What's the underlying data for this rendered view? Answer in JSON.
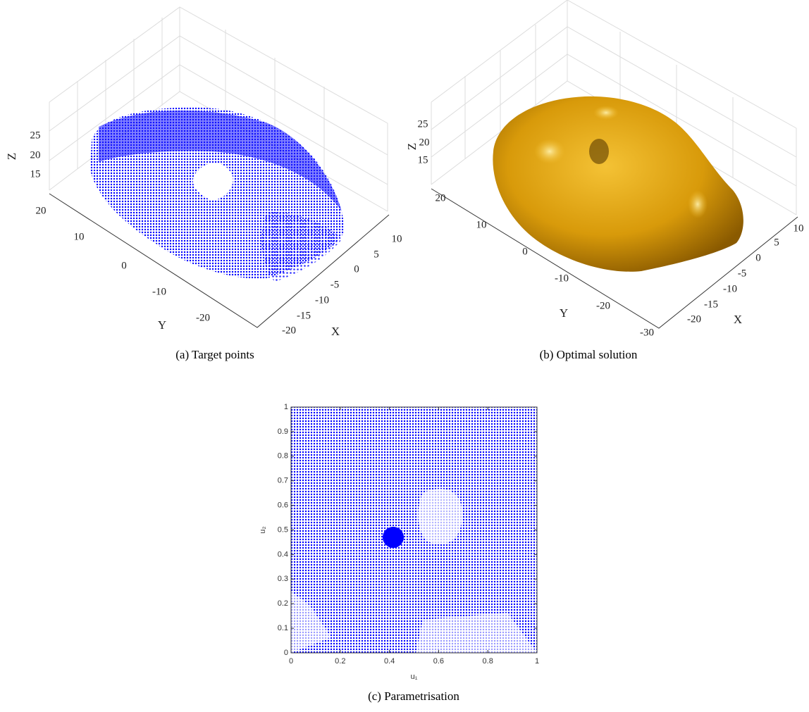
{
  "figure": {
    "panels": [
      {
        "type": "scatter3d",
        "caption": "(a) Target points",
        "xlabel": "X",
        "ylabel": "Y",
        "zlabel": "Z",
        "xticks": [
          -20,
          -15,
          -10,
          -5,
          0,
          5,
          10
        ],
        "yticks": [
          -20,
          -10,
          0,
          10,
          20
        ],
        "zticks": [
          15,
          20,
          25
        ]
      },
      {
        "type": "surface3d",
        "caption": "(b) Optimal solution",
        "xlabel": "X",
        "ylabel": "Y",
        "zlabel": "Z",
        "xticks": [
          -20,
          -15,
          -10,
          -5,
          0,
          5,
          10
        ],
        "yticks": [
          -30,
          -20,
          -10,
          0,
          10,
          20
        ],
        "zticks": [
          15,
          20,
          25
        ]
      },
      {
        "type": "scatter",
        "caption": "(c) Parametrisation",
        "xlabel": "u₁",
        "ylabel": "u₂",
        "xlim": [
          0,
          1
        ],
        "ylim": [
          0,
          1
        ],
        "xticks": [
          0,
          0.2,
          0.4,
          0.6,
          0.8,
          1
        ],
        "yticks": [
          0,
          0.1,
          0.2,
          0.3,
          0.4,
          0.5,
          0.6,
          0.7,
          0.8,
          0.9,
          1
        ]
      }
    ]
  }
}
